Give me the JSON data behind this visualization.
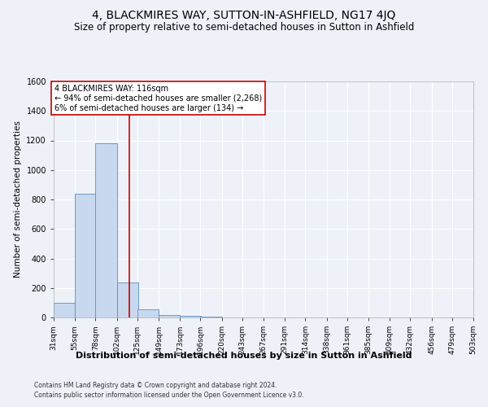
{
  "title": "4, BLACKMIRES WAY, SUTTON-IN-ASHFIELD, NG17 4JQ",
  "subtitle": "Size of property relative to semi-detached houses in Sutton in Ashfield",
  "xlabel": "Distribution of semi-detached houses by size in Sutton in Ashfield",
  "ylabel": "Number of semi-detached properties",
  "footer_line1": "Contains HM Land Registry data © Crown copyright and database right 2024.",
  "footer_line2": "Contains public sector information licensed under the Open Government Licence v3.0.",
  "annotation_title": "4 BLACKMIRES WAY: 116sqm",
  "annotation_line2": "← 94% of semi-detached houses are smaller (2,268)",
  "annotation_line3": "6% of semi-detached houses are larger (134) →",
  "property_size": 116,
  "bin_edges": [
    31,
    55,
    78,
    102,
    125,
    149,
    173,
    196,
    220,
    243,
    267,
    291,
    314,
    338,
    361,
    385,
    409,
    432,
    456,
    479,
    503
  ],
  "bar_heights": [
    100,
    840,
    1180,
    240,
    55,
    15,
    10,
    5,
    2,
    0,
    0,
    0,
    0,
    0,
    0,
    0,
    0,
    0,
    0,
    0
  ],
  "bar_color": "#c8d8ee",
  "bar_edge_color": "#5a8fc2",
  "vline_color": "#cc0000",
  "vline_x": 116,
  "ylim": [
    0,
    1600
  ],
  "yticks": [
    0,
    200,
    400,
    600,
    800,
    1000,
    1200,
    1400,
    1600
  ],
  "background_color": "#eef2f8",
  "grid_color": "#ffffff",
  "title_fontsize": 10,
  "subtitle_fontsize": 8.5,
  "annotation_box_color": "#ffffff",
  "annotation_box_edge": "#cc0000"
}
